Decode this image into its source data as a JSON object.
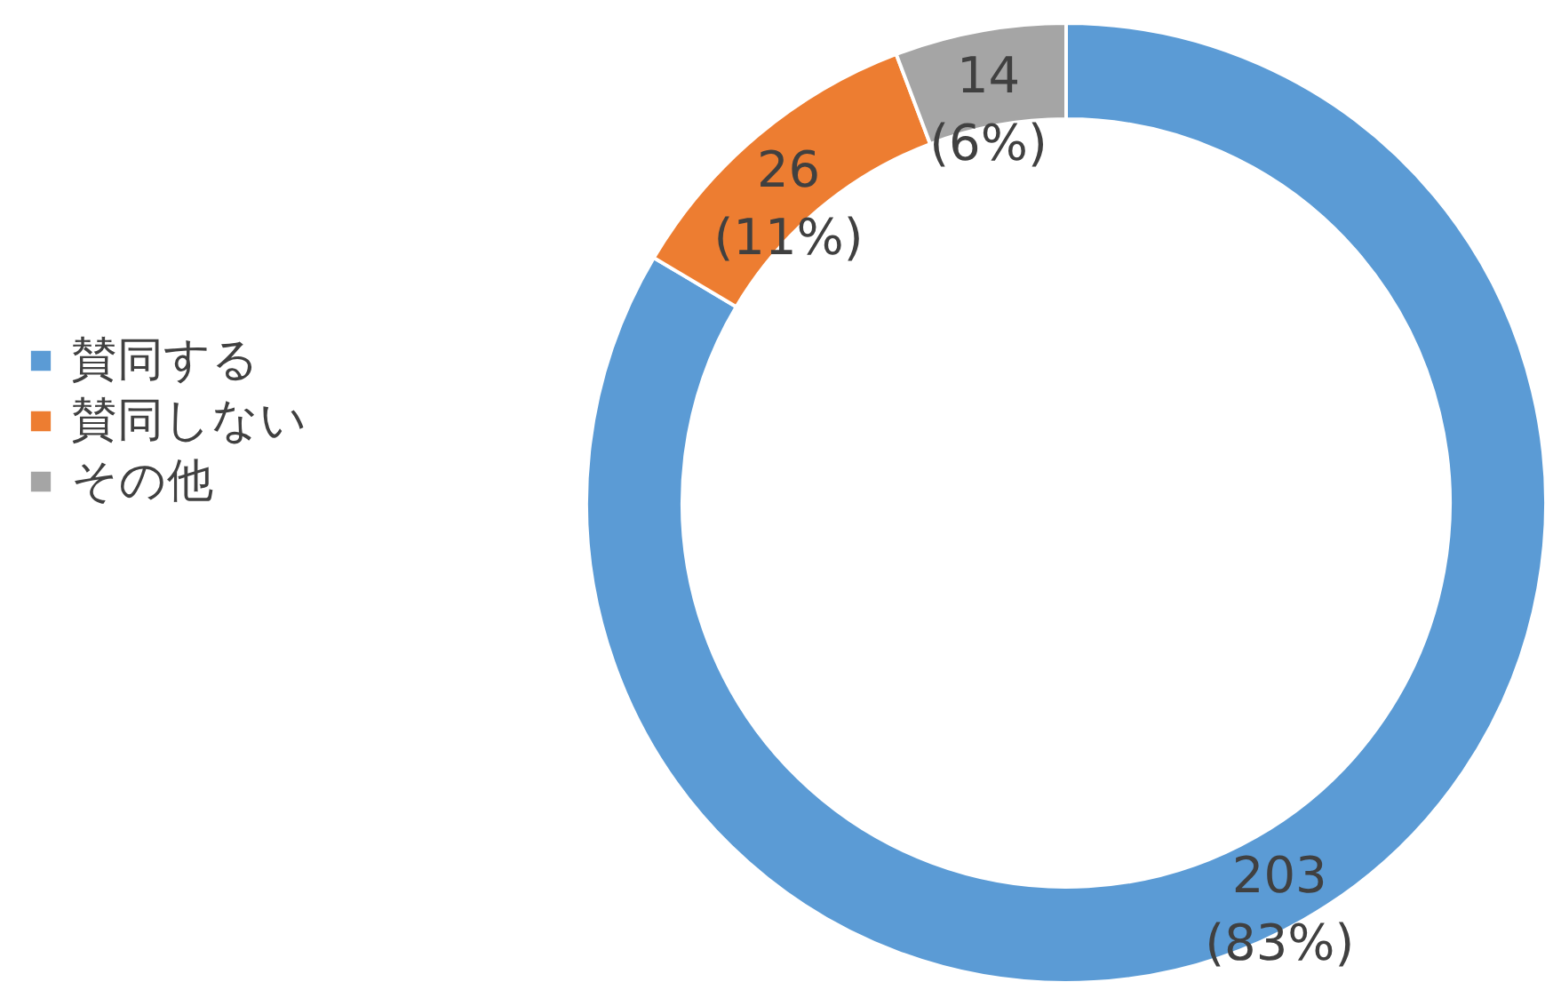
{
  "chart_data": {
    "type": "donut",
    "categories": [
      "賛同する",
      "賛同しない",
      "その他"
    ],
    "values": [
      203,
      26,
      14
    ],
    "colors": [
      "#5b9bd5",
      "#ed7d31",
      "#a5a5a5"
    ],
    "value_labels": [
      "203\n(83%)",
      "26\n(11%)",
      "14\n(6%)"
    ],
    "legend": "left"
  }
}
